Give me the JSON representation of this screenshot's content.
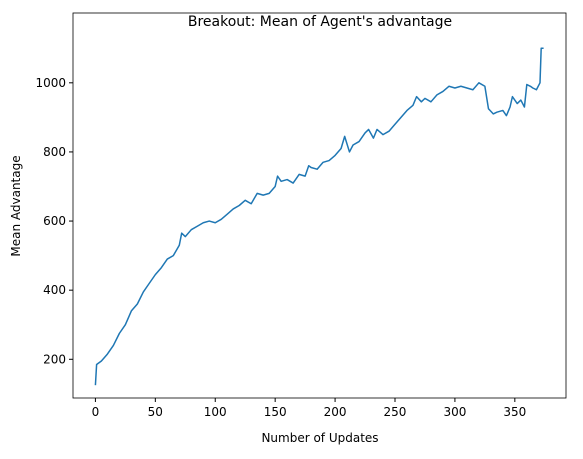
{
  "chart_data": {
    "type": "line",
    "title": "Breakout: Mean of Agent's advantage",
    "xlabel": "Number of Updates",
    "ylabel": "Mean Advantage",
    "series": [
      {
        "color": "#1f77b4",
        "x": [
          0,
          1,
          5,
          10,
          15,
          20,
          25,
          30,
          35,
          40,
          45,
          50,
          55,
          60,
          65,
          70,
          72,
          75,
          80,
          85,
          90,
          95,
          100,
          105,
          110,
          115,
          120,
          125,
          130,
          135,
          140,
          145,
          150,
          152,
          155,
          160,
          165,
          170,
          175,
          178,
          180,
          185,
          190,
          195,
          200,
          205,
          208,
          212,
          215,
          220,
          225,
          228,
          232,
          235,
          240,
          245,
          250,
          255,
          260,
          265,
          268,
          272,
          275,
          280,
          285,
          290,
          295,
          300,
          305,
          310,
          315,
          320,
          325,
          328,
          332,
          335,
          340,
          343,
          346,
          348,
          352,
          355,
          358,
          360,
          363,
          365,
          368,
          371,
          372,
          374
        ],
        "values": [
          125,
          185,
          195,
          215,
          240,
          275,
          300,
          340,
          360,
          395,
          420,
          445,
          465,
          490,
          500,
          530,
          565,
          555,
          575,
          585,
          595,
          600,
          595,
          605,
          620,
          635,
          645,
          660,
          650,
          680,
          675,
          680,
          700,
          730,
          715,
          720,
          710,
          735,
          730,
          760,
          755,
          750,
          770,
          775,
          790,
          810,
          845,
          800,
          820,
          830,
          855,
          865,
          840,
          865,
          850,
          860,
          880,
          900,
          920,
          935,
          960,
          945,
          955,
          945,
          965,
          975,
          990,
          985,
          990,
          985,
          980,
          1000,
          990,
          925,
          910,
          915,
          920,
          905,
          930,
          960,
          940,
          950,
          930,
          995,
          990,
          985,
          980,
          1000,
          1100,
          1100
        ]
      }
    ],
    "xlim": [
      -18.7,
      392.7
    ],
    "ylim": [
      88,
      1202
    ],
    "xticks": [
      0,
      50,
      100,
      150,
      200,
      250,
      300,
      350
    ],
    "yticks": [
      200,
      400,
      600,
      800,
      1000
    ]
  }
}
